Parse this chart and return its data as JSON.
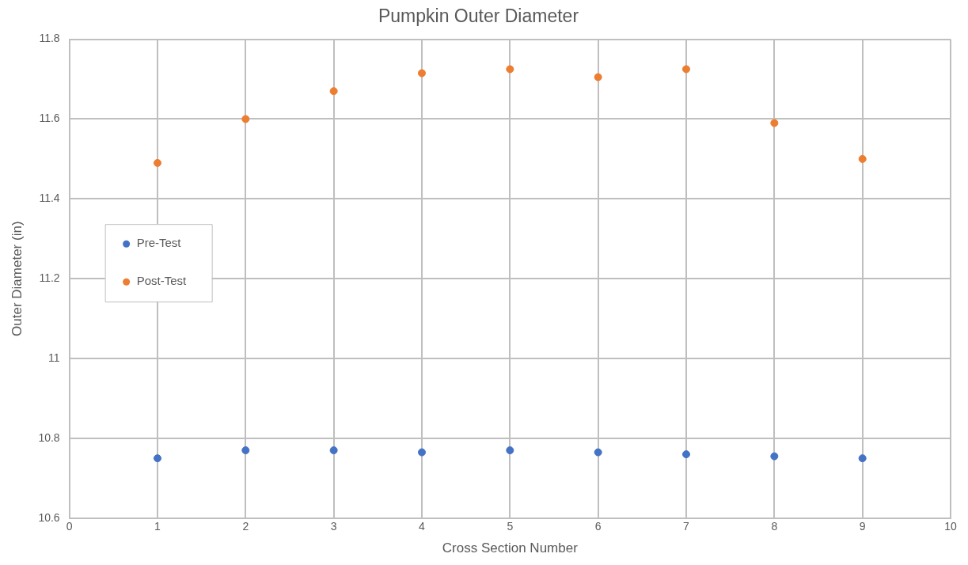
{
  "chart_data": {
    "type": "scatter",
    "title": "Pumpkin Outer Diameter",
    "xlabel": "Cross Section Number",
    "ylabel": "Outer Diameter (in)",
    "x": [
      1,
      2,
      3,
      4,
      5,
      6,
      7,
      8,
      9
    ],
    "series": [
      {
        "name": "Pre-Test",
        "color": "#4472c4",
        "values": [
          10.75,
          10.77,
          10.77,
          10.765,
          10.77,
          10.765,
          10.76,
          10.755,
          10.75
        ]
      },
      {
        "name": "Post-Test",
        "color": "#ed7d31",
        "values": [
          11.49,
          11.6,
          11.67,
          11.715,
          11.725,
          11.705,
          11.725,
          11.59,
          11.5
        ]
      }
    ],
    "xlim": [
      0,
      10
    ],
    "xticks": [
      0,
      1,
      2,
      3,
      4,
      5,
      6,
      7,
      8,
      9,
      10
    ],
    "ylim": [
      10.6,
      11.8
    ],
    "yticks": [
      {
        "value": 10.6,
        "label": "10.6"
      },
      {
        "value": 10.8,
        "label": "10.8"
      },
      11,
      {
        "value": 11.2,
        "label": "11.2"
      },
      {
        "value": 11.4,
        "label": "11.4"
      },
      {
        "value": 11.6,
        "label": "11.6"
      },
      {
        "value": 11.8,
        "label": "11.8"
      }
    ],
    "grid": true,
    "legend": "left",
    "marker": "circle"
  }
}
